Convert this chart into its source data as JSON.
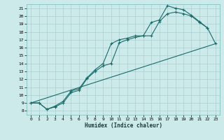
{
  "xlabel": "Humidex (Indice chaleur)",
  "bg_color": "#cceaea",
  "grid_color": "#aacece",
  "line_color": "#1a6b6b",
  "xlim": [
    -0.5,
    23.5
  ],
  "ylim": [
    7.5,
    21.5
  ],
  "xticks": [
    0,
    1,
    2,
    3,
    4,
    5,
    6,
    7,
    8,
    9,
    10,
    11,
    12,
    13,
    14,
    15,
    16,
    17,
    18,
    19,
    20,
    21,
    22,
    23
  ],
  "yticks": [
    8,
    9,
    10,
    11,
    12,
    13,
    14,
    15,
    16,
    17,
    18,
    19,
    20,
    21
  ],
  "line1_x": [
    0,
    1,
    2,
    3,
    4,
    5,
    6,
    7,
    8,
    9,
    10,
    11,
    12,
    13,
    14,
    15,
    16,
    17,
    18,
    19,
    20,
    21,
    22
  ],
  "line1_y": [
    9,
    9,
    8.2,
    8.6,
    9.2,
    10.5,
    10.8,
    12.2,
    13.2,
    14.0,
    16.5,
    17.0,
    17.2,
    17.5,
    17.5,
    19.2,
    19.5,
    21.3,
    21.0,
    20.8,
    20.1,
    19.3,
    18.5
  ],
  "line2_x": [
    0,
    1,
    2,
    3,
    4,
    5,
    6,
    7,
    8,
    9,
    10,
    11,
    12,
    13,
    14,
    15,
    16,
    17,
    18,
    19,
    20,
    21,
    22,
    23
  ],
  "line2_y": [
    9,
    9,
    8.2,
    8.5,
    9.0,
    10.3,
    10.6,
    12.1,
    13.0,
    13.7,
    14.0,
    16.6,
    17.0,
    17.3,
    17.5,
    17.5,
    19.3,
    20.3,
    20.5,
    20.3,
    20.0,
    19.2,
    18.5,
    16.5
  ],
  "line3_x": [
    0,
    23
  ],
  "line3_y": [
    9,
    16.5
  ]
}
